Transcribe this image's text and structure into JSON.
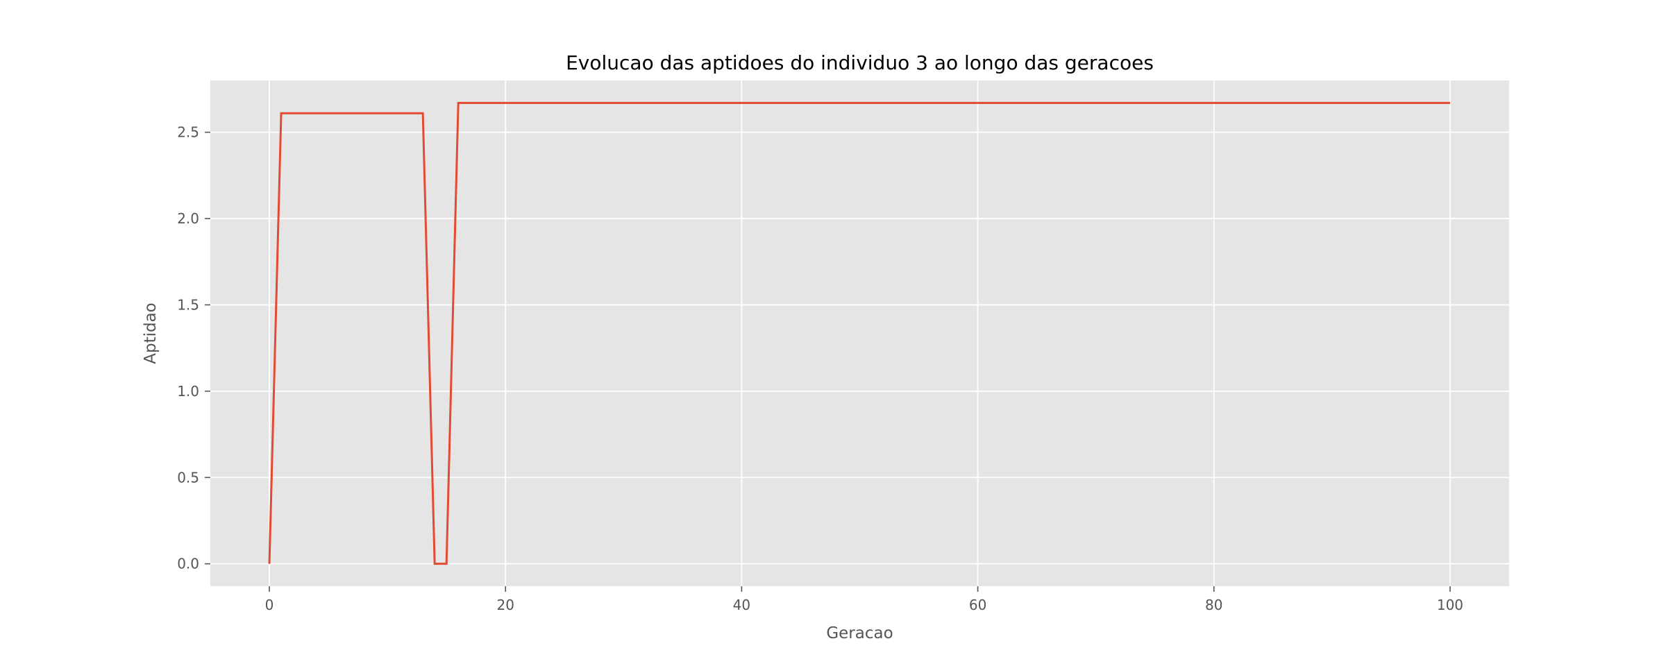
{
  "chart_data": {
    "type": "line",
    "title": "Evolucao das aptidoes do individuo 3 ao longo das geracoes",
    "xlabel": "Geracao",
    "ylabel": "Aptidao",
    "xlim": [
      -5,
      105
    ],
    "ylim": [
      -0.13,
      2.8
    ],
    "xticks": [
      0,
      20,
      40,
      60,
      80,
      100
    ],
    "yticks": [
      0.0,
      0.5,
      1.0,
      1.5,
      2.0,
      2.5
    ],
    "xtick_labels": [
      "0",
      "20",
      "40",
      "60",
      "80",
      "100"
    ],
    "ytick_labels": [
      "0.0",
      "0.5",
      "1.0",
      "1.5",
      "2.0",
      "2.5"
    ],
    "grid": true,
    "style": "ggplot",
    "series": [
      {
        "color": "#E24A33",
        "x": [
          0,
          1,
          2,
          3,
          4,
          5,
          6,
          7,
          8,
          9,
          10,
          11,
          12,
          13,
          14,
          15,
          16,
          17,
          18,
          19,
          20,
          21,
          22,
          23,
          24,
          25,
          26,
          27,
          28,
          29,
          30,
          31,
          32,
          33,
          34,
          35,
          36,
          37,
          38,
          39,
          40,
          41,
          42,
          43,
          44,
          45,
          46,
          47,
          48,
          49,
          50,
          51,
          52,
          53,
          54,
          55,
          56,
          57,
          58,
          59,
          60,
          61,
          62,
          63,
          64,
          65,
          66,
          67,
          68,
          69,
          70,
          71,
          72,
          73,
          74,
          75,
          76,
          77,
          78,
          79,
          80,
          81,
          82,
          83,
          84,
          85,
          86,
          87,
          88,
          89,
          90,
          91,
          92,
          93,
          94,
          95,
          96,
          97,
          98,
          99,
          100
        ],
        "values": [
          0.0,
          2.61,
          2.61,
          2.61,
          2.61,
          2.61,
          2.61,
          2.61,
          2.61,
          2.61,
          2.61,
          2.61,
          2.61,
          2.61,
          0.0,
          0.0,
          2.67,
          2.67,
          2.67,
          2.67,
          2.67,
          2.67,
          2.67,
          2.67,
          2.67,
          2.67,
          2.67,
          2.67,
          2.67,
          2.67,
          2.67,
          2.67,
          2.67,
          2.67,
          2.67,
          2.67,
          2.67,
          2.67,
          2.67,
          2.67,
          2.67,
          2.67,
          2.67,
          2.67,
          2.67,
          2.67,
          2.67,
          2.67,
          2.67,
          2.67,
          2.67,
          2.67,
          2.67,
          2.67,
          2.67,
          2.67,
          2.67,
          2.67,
          2.67,
          2.67,
          2.67,
          2.67,
          2.67,
          2.67,
          2.67,
          2.67,
          2.67,
          2.67,
          2.67,
          2.67,
          2.67,
          2.67,
          2.67,
          2.67,
          2.67,
          2.67,
          2.67,
          2.67,
          2.67,
          2.67,
          2.67,
          2.67,
          2.67,
          2.67,
          2.67,
          2.67,
          2.67,
          2.67,
          2.67,
          2.67,
          2.67,
          2.67,
          2.67,
          2.67,
          2.67,
          2.67,
          2.67,
          2.67,
          2.67,
          2.67,
          2.67
        ]
      }
    ]
  },
  "colors": {
    "plot_background": "#E5E5E5",
    "grid": "#FFFFFF",
    "line": "#E24A33",
    "tick_text": "#555555",
    "title_text": "#000000"
  }
}
